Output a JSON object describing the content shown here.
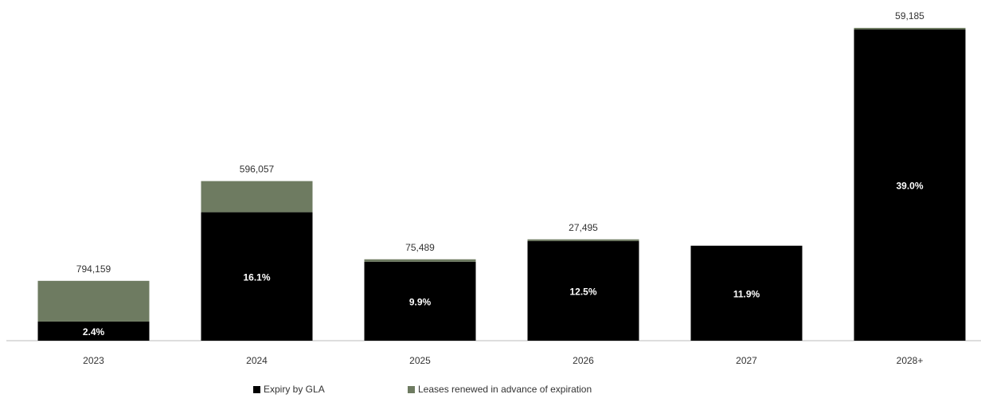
{
  "chart_data": {
    "type": "stacked_bar",
    "categories": [
      "2023",
      "2024",
      "2025",
      "2026",
      "2027",
      "2028+"
    ],
    "series": [
      {
        "name": "Expiry by GLA",
        "color": "#000000",
        "values": [
          2.4,
          16.1,
          9.9,
          12.5,
          11.9,
          39.0
        ],
        "value_labels": [
          "2.4%",
          "16.1%",
          "9.9%",
          "12.5%",
          "11.9%",
          "39.0%"
        ]
      },
      {
        "name": "Leases renewed in advance of expiration",
        "color": "#6e7b61",
        "values": [
          5.1,
          3.9,
          0.3,
          0.2,
          null,
          0.2
        ]
      }
    ],
    "bar_totals": [
      {
        "value": 794159,
        "label": "794,159"
      },
      {
        "value": 596057,
        "label": "596,057"
      },
      {
        "value": 75489,
        "label": "75,489"
      },
      {
        "value": 27495,
        "label": "27,495"
      },
      null,
      {
        "value": 59185,
        "label": "59,185"
      }
    ],
    "ylim": [
      0,
      40
    ]
  }
}
